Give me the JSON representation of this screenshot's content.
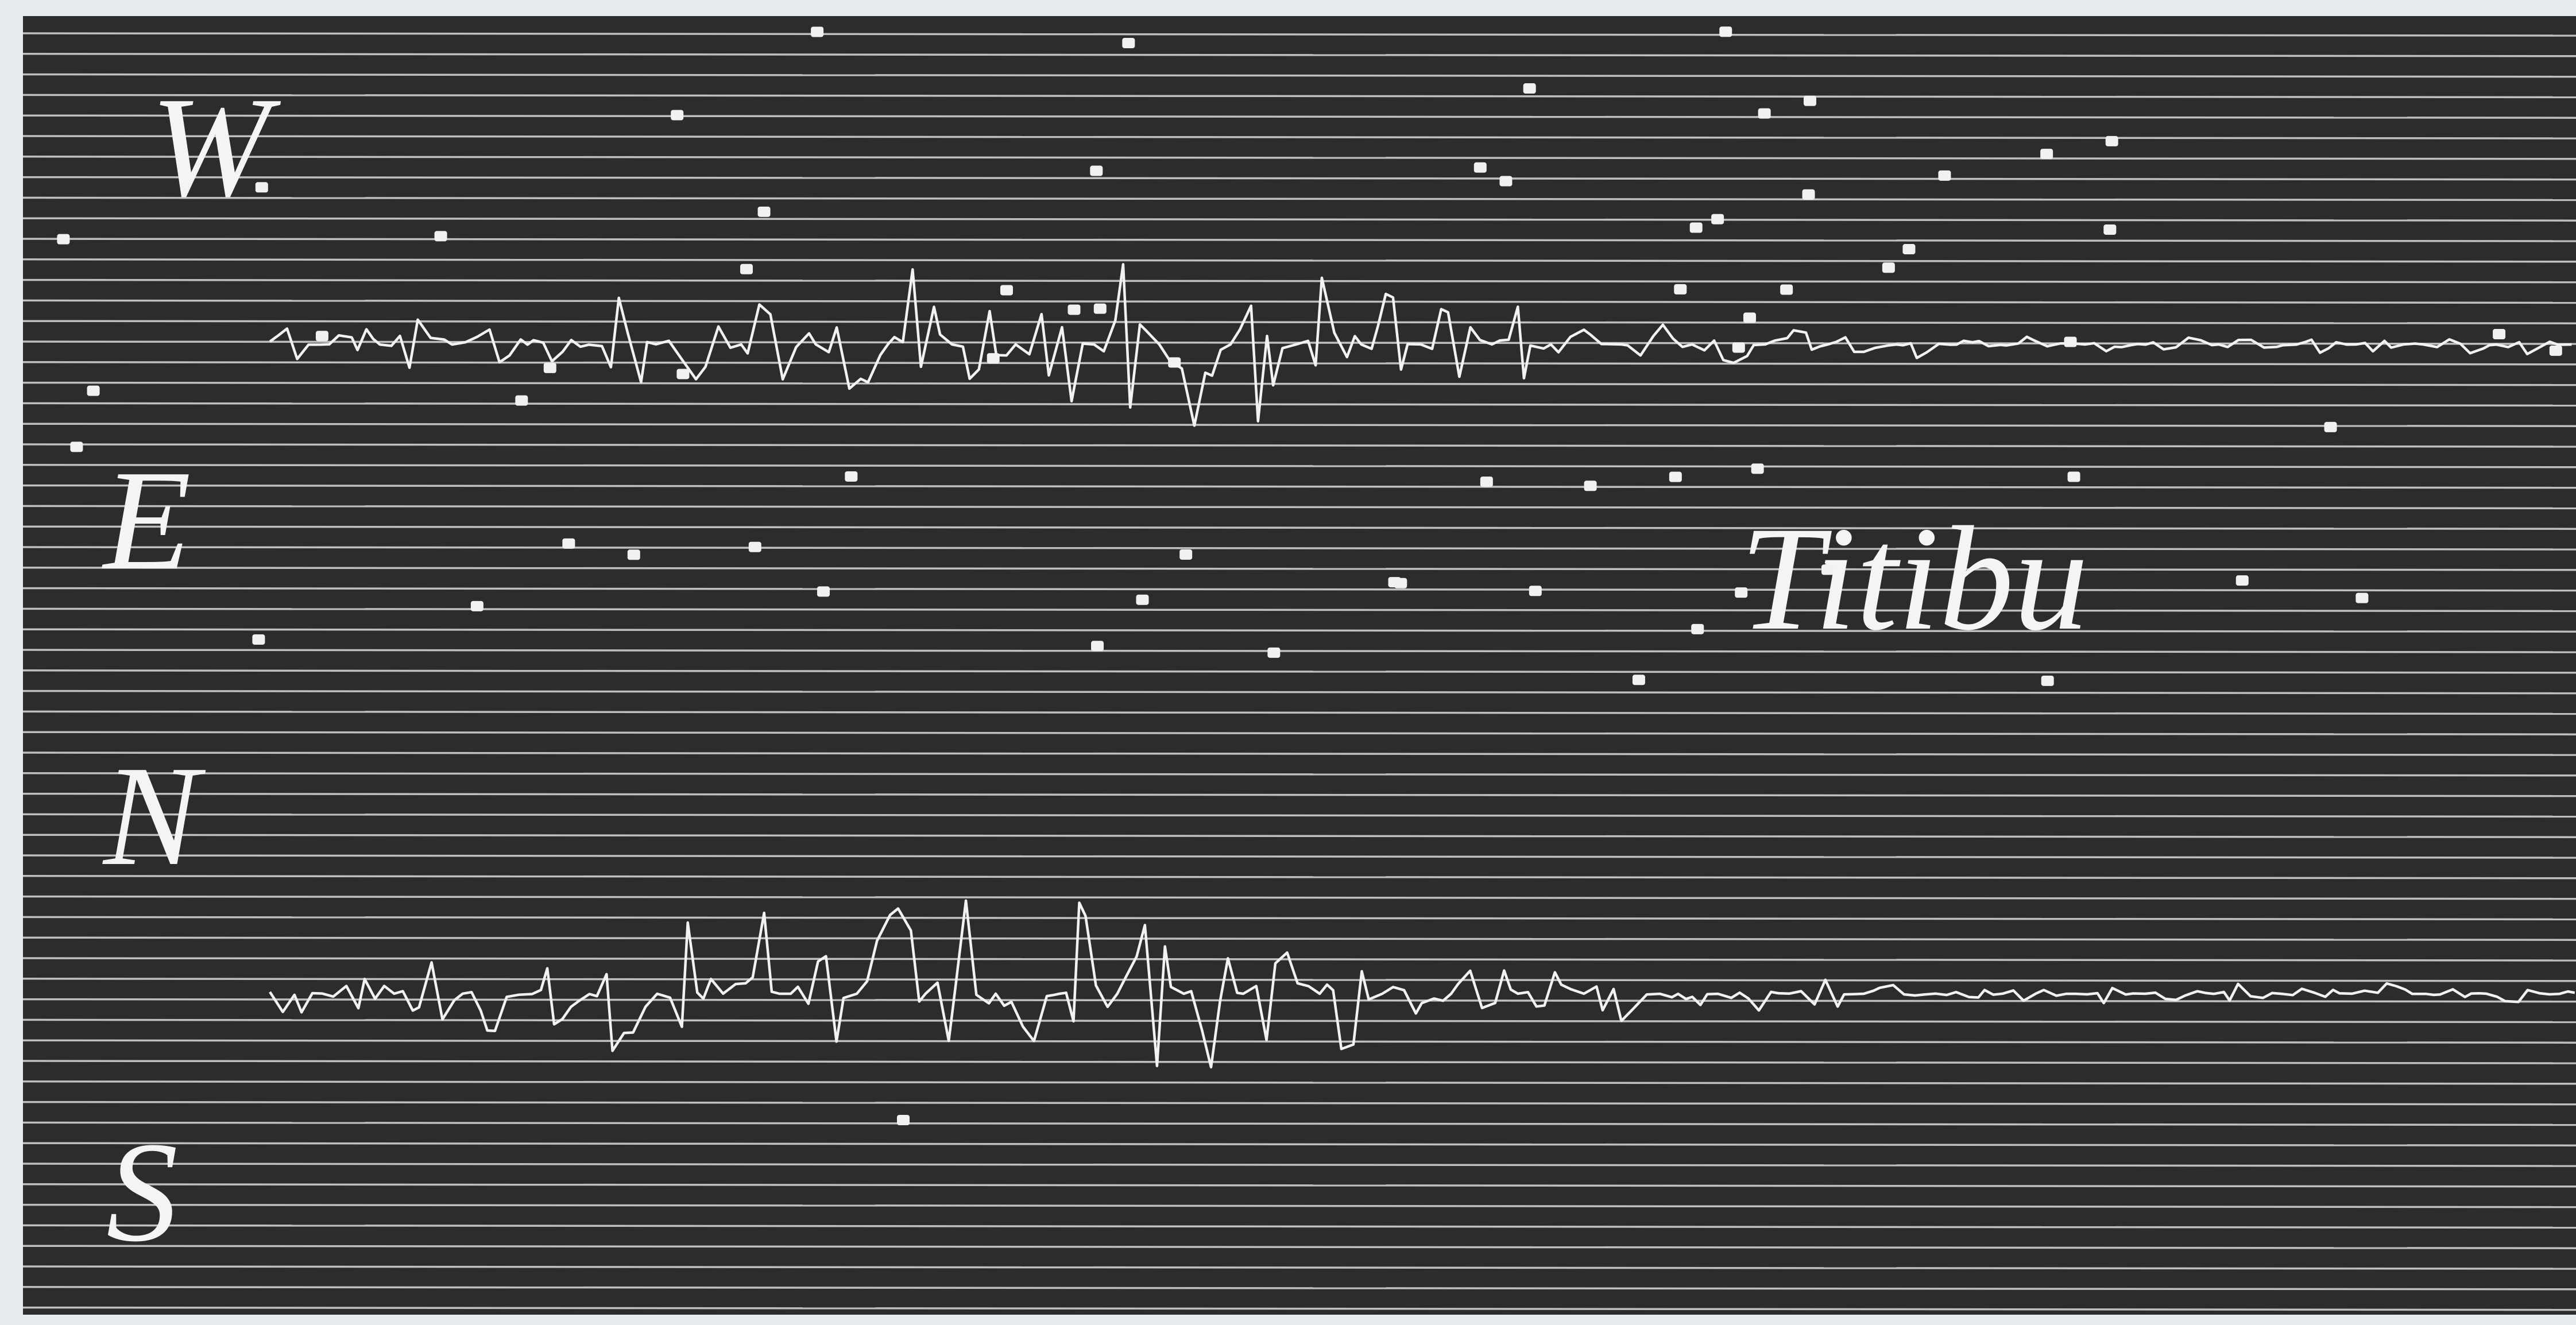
{
  "labels": [
    "W",
    "E",
    "N",
    "S"
  ],
  "station": "Titibu"
}
